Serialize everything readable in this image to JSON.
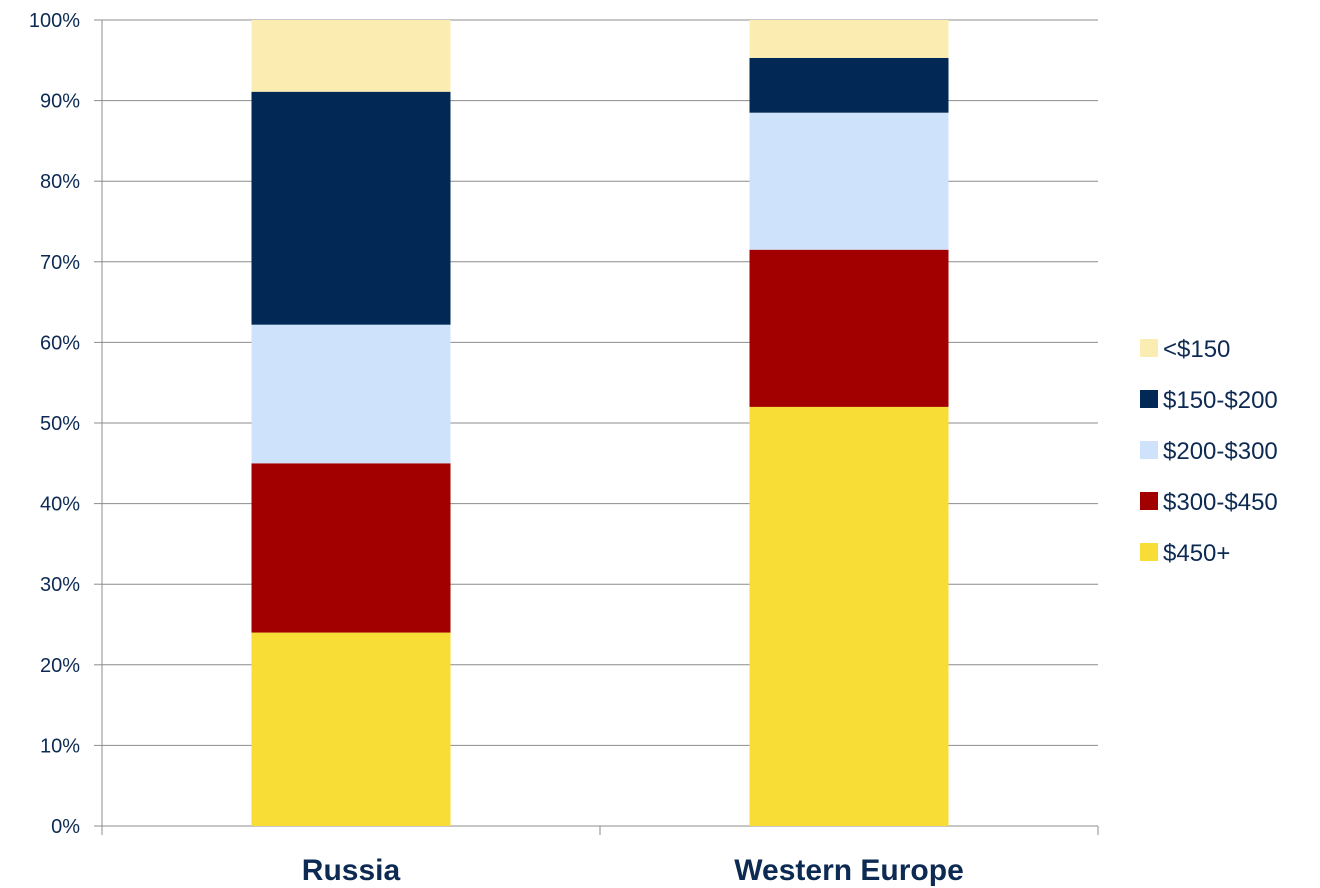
{
  "chart_data": {
    "type": "bar",
    "stacked": true,
    "categories": [
      "Russia",
      "Western Europe"
    ],
    "series": [
      {
        "name": "$450+",
        "values": [
          24,
          52
        ],
        "color": "#f7dd35"
      },
      {
        "name": "$300-$450",
        "values": [
          21,
          19.5
        ],
        "color": "#a20000"
      },
      {
        "name": "$200-$300",
        "values": [
          17.2,
          17
        ],
        "color": "#cfe2fc"
      },
      {
        "name": "$150-$200",
        "values": [
          28.9,
          6.8
        ],
        "color": "#022855"
      },
      {
        "name": "<$150",
        "values": [
          8.9,
          4.7
        ],
        "color": "#fbecb2"
      }
    ],
    "legend_order": [
      "<$150",
      "$150-$200",
      "$200-$300",
      "$300-$450",
      "$450+"
    ],
    "y_ticks": [
      "0%",
      "10%",
      "20%",
      "30%",
      "40%",
      "50%",
      "60%",
      "70%",
      "80%",
      "90%",
      "100%"
    ],
    "ylim": [
      0,
      100
    ],
    "grid": true,
    "legend_position": "right",
    "title": "",
    "xlabel": "",
    "ylabel": ""
  }
}
